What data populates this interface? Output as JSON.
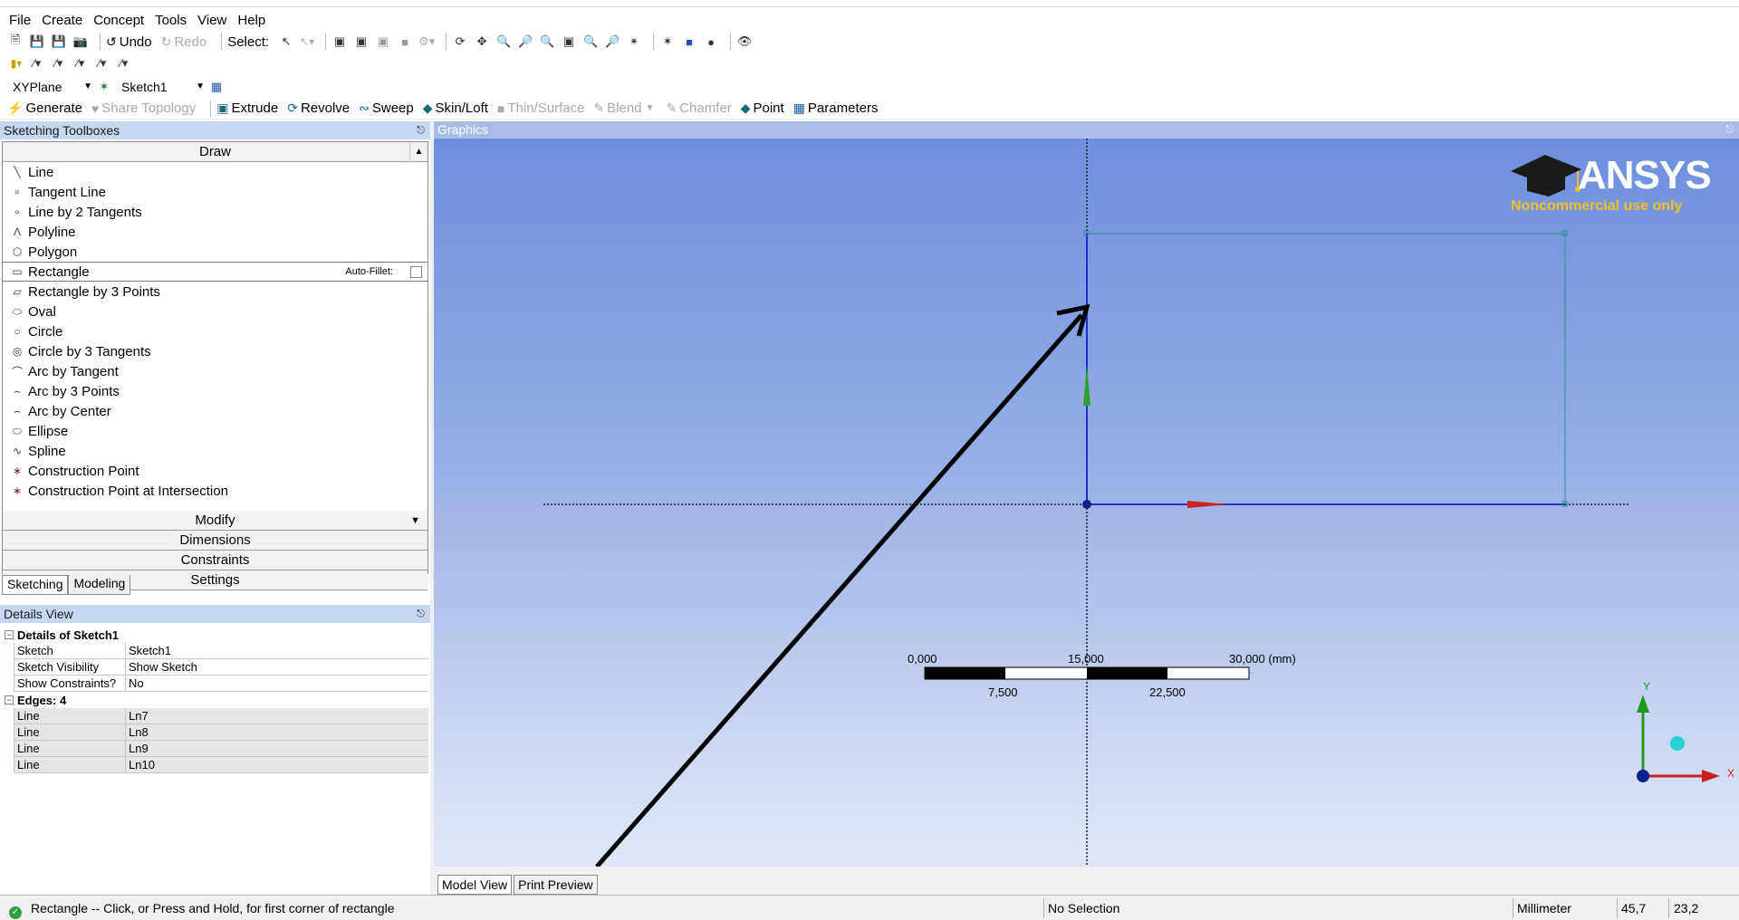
{
  "menubar": [
    "File",
    "Create",
    "Concept",
    "Tools",
    "View",
    "Help"
  ],
  "toolbar1": {
    "undo": "Undo",
    "redo": "Redo",
    "select_label": "Select:"
  },
  "toolbar3": {
    "plane": "XYPlane",
    "sketch": "Sketch1"
  },
  "toolbar4": {
    "generate": "Generate",
    "share_topology": "Share Topology",
    "extrude": "Extrude",
    "revolve": "Revolve",
    "sweep": "Sweep",
    "skin_loft": "Skin/Loft",
    "thin_surface": "Thin/Surface",
    "blend": "Blend",
    "chamfer": "Chamfer",
    "point": "Point",
    "parameters": "Parameters"
  },
  "toolboxes": {
    "title": "Sketching Toolboxes",
    "draw_title": "Draw",
    "draw_items": [
      "Line",
      "Tangent Line",
      "Line by 2 Tangents",
      "Polyline",
      "Polygon",
      "Rectangle",
      "Rectangle by 3 Points",
      "Oval",
      "Circle",
      "Circle by 3 Tangents",
      "Arc by Tangent",
      "Arc by 3 Points",
      "Arc by Center",
      "Ellipse",
      "Spline",
      "Construction Point",
      "Construction Point at Intersection"
    ],
    "auto_fillet": "Auto-Fillet:",
    "sections": [
      "Modify",
      "Dimensions",
      "Constraints",
      "Settings"
    ],
    "tabs": [
      "Sketching",
      "Modeling"
    ]
  },
  "details": {
    "title": "Details View",
    "group1": "Details of Sketch1",
    "rows": [
      {
        "k": "Sketch",
        "v": "Sketch1"
      },
      {
        "k": "Sketch Visibility",
        "v": "Show Sketch"
      },
      {
        "k": "Show Constraints?",
        "v": "No"
      }
    ],
    "group2": "Edges: 4",
    "edges": [
      {
        "k": "Line",
        "v": "Ln7"
      },
      {
        "k": "Line",
        "v": "Ln8"
      },
      {
        "k": "Line",
        "v": "Ln9"
      },
      {
        "k": "Line",
        "v": "Ln10"
      }
    ]
  },
  "graphics": {
    "title": "Graphics",
    "logo_word": "ANSYS",
    "logo_sub": "Noncommercial use only",
    "scale_top": [
      "0,000",
      "15,000",
      "30,000 (mm)"
    ],
    "scale_bottom": [
      "7,500",
      "22,500"
    ],
    "axis_y": "Y",
    "axis_x": "X",
    "tabs": [
      "Model View",
      "Print Preview"
    ]
  },
  "status": {
    "message": "Rectangle -- Click, or Press and Hold, for first corner of rectangle",
    "selection": "No Selection",
    "units": "Millimeter",
    "coord_x": "45,7",
    "coord_y": "23,2"
  },
  "colors": {
    "panel_header": "#c6d7f0",
    "viewport_top": "#6d8fde",
    "viewport_bottom": "#dfe7f6",
    "logo_yellow": "#f5c024",
    "status_ok": "#2f9e3e"
  }
}
